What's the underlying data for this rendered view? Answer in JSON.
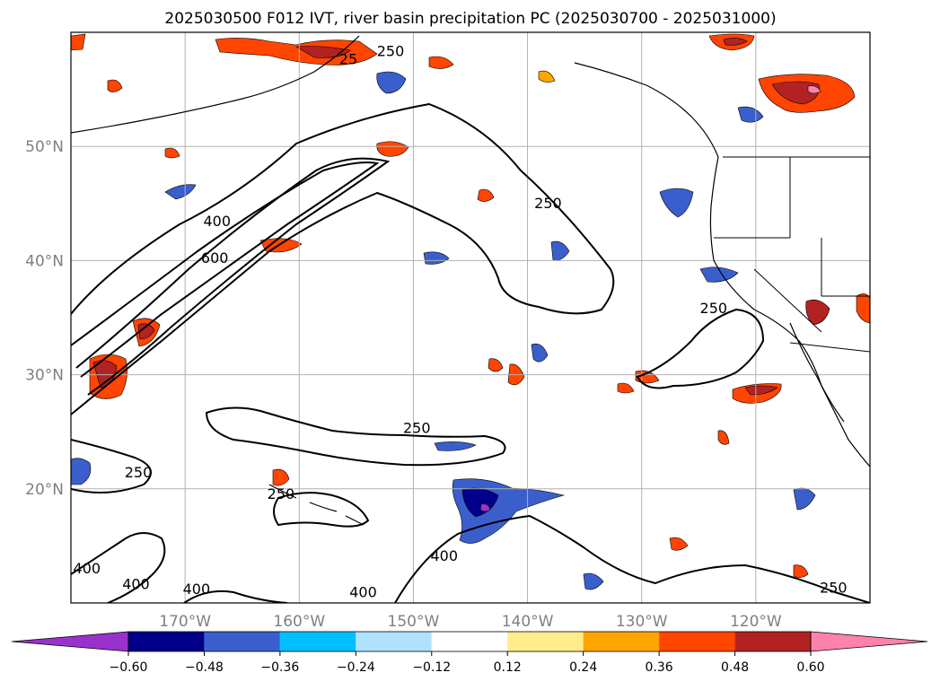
{
  "title": "2025030500 F012 IVT, river basin precipitation PC (2025030700 - 2025031000)",
  "map": {
    "lon_range": [
      -180,
      -110
    ],
    "lat_range": [
      10,
      60
    ],
    "lat_ticks": [
      {
        "value": 50,
        "label": "50°N"
      },
      {
        "value": 40,
        "label": "40°N"
      },
      {
        "value": 30,
        "label": "30°N"
      },
      {
        "value": 20,
        "label": "20°N"
      }
    ],
    "lon_ticks": [
      {
        "value": -170,
        "label": "170°W"
      },
      {
        "value": -160,
        "label": "160°W"
      },
      {
        "value": -150,
        "label": "150°W"
      },
      {
        "value": -140,
        "label": "140°W"
      },
      {
        "value": -130,
        "label": "130°W"
      },
      {
        "value": -120,
        "label": "120°W"
      }
    ],
    "contour_labels": [
      {
        "text": "250",
        "lon": -174.1,
        "lat": 21.0
      },
      {
        "text": "250",
        "lon": -161.6,
        "lat": 19.1
      },
      {
        "text": "250",
        "lon": -149.7,
        "lat": 24.9
      },
      {
        "text": "400",
        "lon": -178.6,
        "lat": 12.6
      },
      {
        "text": "400",
        "lon": -174.3,
        "lat": 11.2
      },
      {
        "text": "400",
        "lon": -169.0,
        "lat": 10.8
      },
      {
        "text": "400",
        "lon": -147.3,
        "lat": 13.7
      },
      {
        "text": "400",
        "lon": -154.4,
        "lat": 10.5
      },
      {
        "text": "400",
        "lon": -167.2,
        "lat": 43.0
      },
      {
        "text": "600",
        "lon": -167.4,
        "lat": 39.8
      },
      {
        "text": "250",
        "lon": -138.2,
        "lat": 44.6
      },
      {
        "text": "250",
        "lon": -123.7,
        "lat": 35.4
      },
      {
        "text": "250",
        "lon": -113.2,
        "lat": 10.9
      },
      {
        "text": "25",
        "lon": -155.7,
        "lat": 57.2
      },
      {
        "text": "250",
        "lon": -152.0,
        "lat": 57.9
      }
    ]
  },
  "chart_data": {
    "type": "heatmap",
    "colorbar": {
      "ticks": [
        "−0.60",
        "−0.48",
        "−0.36",
        "−0.24",
        "−0.12",
        "0.12",
        "0.24",
        "0.36",
        "0.48",
        "0.60"
      ],
      "colors": [
        "#9932cc",
        "#00008b",
        "#3a5fcd",
        "#00bfff",
        "#b0e2ff",
        "#ffffff",
        "#ffec8b",
        "#ffa500",
        "#ff4500",
        "#b22222",
        "#ff82ab"
      ],
      "extend": "both"
    }
  }
}
